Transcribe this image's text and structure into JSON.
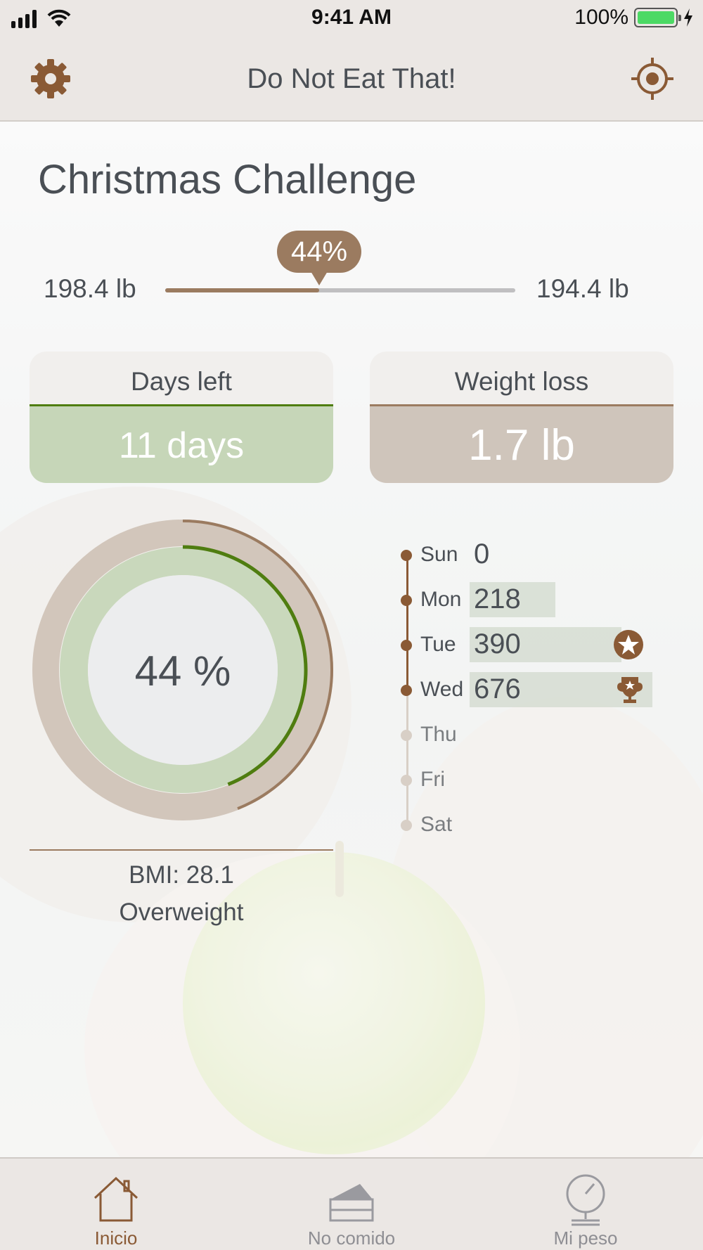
{
  "status_bar": {
    "time": "9:41 AM",
    "battery_percent": "100%",
    "icons": [
      "signal-icon",
      "wifi-icon",
      "battery-icon",
      "charging-icon"
    ]
  },
  "nav": {
    "title": "Do Not Eat That!",
    "left_icon": "gear-icon",
    "right_icon": "target-icon"
  },
  "challenge": {
    "title": "Christmas Challenge",
    "start_weight": "198.4 lb",
    "target_weight": "194.4 lb",
    "progress_label": "44%",
    "progress_fraction": 0.44
  },
  "cards": {
    "days_left": {
      "label": "Days left",
      "value": "11 days"
    },
    "weight_loss": {
      "label": "Weight loss",
      "value": "1.7 lb"
    }
  },
  "ring": {
    "label": "44 %",
    "inner_fraction": 0.44,
    "outer_fraction": 0.44
  },
  "bmi": {
    "value": "BMI: 28.1",
    "category": "Overweight"
  },
  "week": [
    {
      "day": "Sun",
      "value": "0",
      "done": true,
      "bar_fraction": 0,
      "badge": null
    },
    {
      "day": "Mon",
      "value": "218",
      "done": true,
      "bar_fraction": 0.47,
      "badge": null
    },
    {
      "day": "Tue",
      "value": "390",
      "done": true,
      "bar_fraction": 0.83,
      "badge": "star-badge-icon"
    },
    {
      "day": "Wed",
      "value": "676",
      "done": true,
      "bar_fraction": 1.0,
      "badge": "trophy-badge-icon"
    },
    {
      "day": "Thu",
      "value": "",
      "done": false,
      "bar_fraction": 0,
      "badge": null
    },
    {
      "day": "Fri",
      "value": "",
      "done": false,
      "bar_fraction": 0,
      "badge": null
    },
    {
      "day": "Sat",
      "value": "",
      "done": false,
      "bar_fraction": 0,
      "badge": null
    }
  ],
  "tabs": [
    {
      "label": "Inicio",
      "icon": "home-icon",
      "active": true
    },
    {
      "label": "No comido",
      "icon": "cake-icon",
      "active": false
    },
    {
      "label": "Mi peso",
      "icon": "scale-icon",
      "active": false
    }
  ],
  "colors": {
    "accent_brown": "#9b7b60",
    "dark_brown": "#8a5a35",
    "green": "#4f7d10",
    "light_green": "#c6d6b8",
    "beige": "#cfc5bb"
  }
}
